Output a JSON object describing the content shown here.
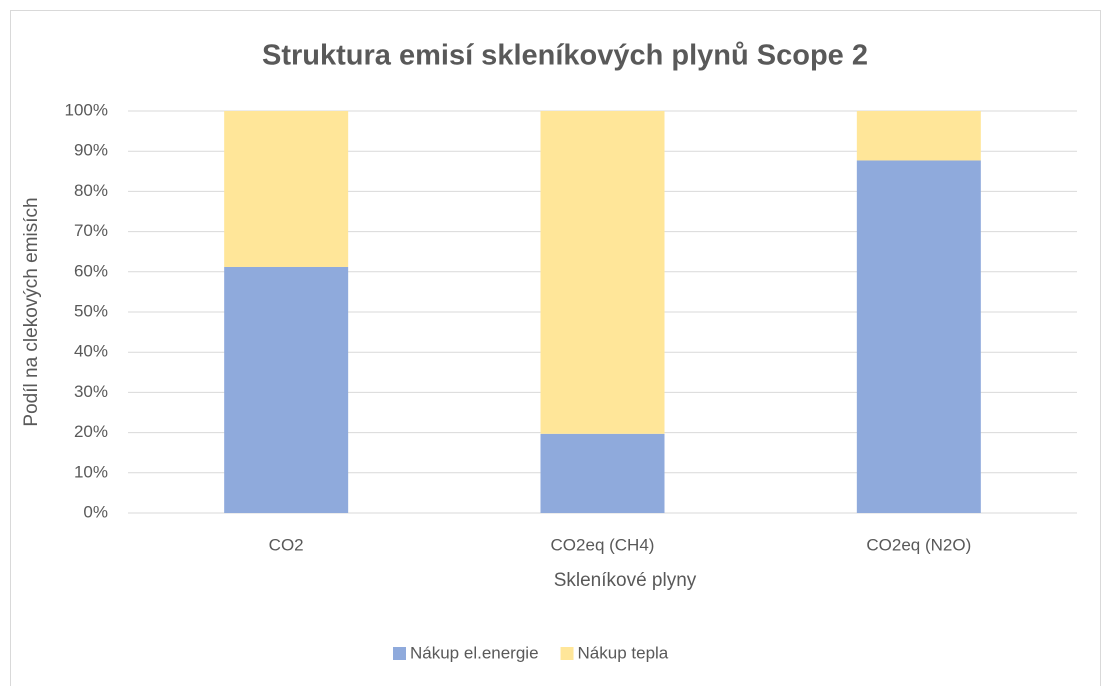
{
  "chart_data": {
    "type": "bar",
    "stacked": true,
    "title": "Struktura emisí skleníkových plynů Scope 2",
    "x_label": "Skleníkové plyny",
    "y_label": "Podíl na clekových emisích",
    "categories": [
      "CO2",
      "CO2eq (CH4)",
      "CO2eq (N2O)"
    ],
    "series": [
      {
        "name": "Nákup el.energie",
        "color": "#8faadc",
        "values": [
          61.2,
          19.7,
          87.7
        ]
      },
      {
        "name": "Nákup tepla",
        "color": "#ffe699",
        "values": [
          38.8,
          80.3,
          12.3
        ]
      }
    ],
    "ylim": [
      0,
      100
    ],
    "yticks": [
      {
        "value": 0,
        "label": "0%"
      },
      {
        "value": 10,
        "label": "10%"
      },
      {
        "value": 20,
        "label": "20%"
      },
      {
        "value": 30,
        "label": "30%"
      },
      {
        "value": 40,
        "label": "40%"
      },
      {
        "value": 50,
        "label": "50%"
      },
      {
        "value": 60,
        "label": "60%"
      },
      {
        "value": 70,
        "label": "70%"
      },
      {
        "value": 80,
        "label": "80%"
      },
      {
        "value": 90,
        "label": "90%"
      },
      {
        "value": 100,
        "label": "100%"
      }
    ],
    "grid": true,
    "legend": "bottom"
  }
}
